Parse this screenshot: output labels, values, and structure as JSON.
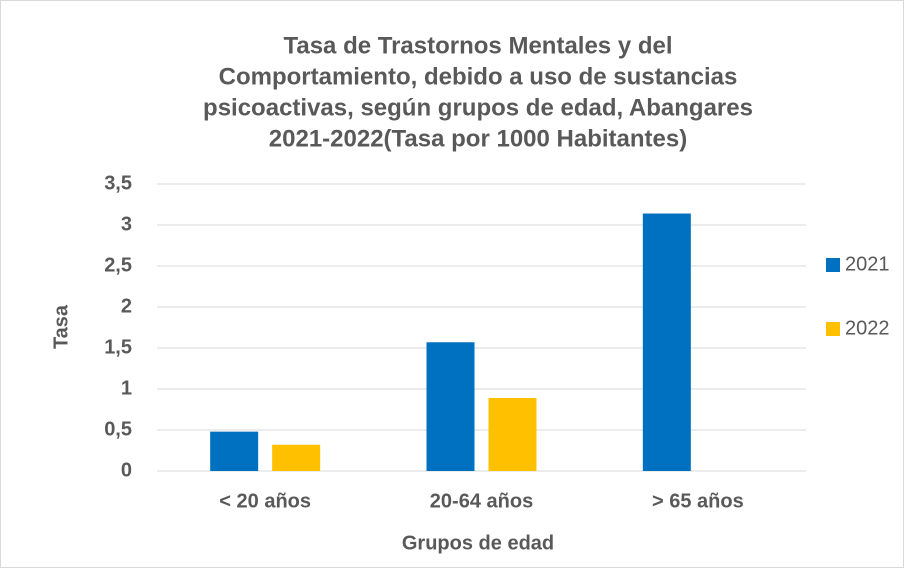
{
  "chart_data": {
    "type": "bar",
    "title": [
      "Tasa de Trastornos Mentales y del",
      "Comportamiento, debido a uso de sustancias",
      "psicoactivas, según grupos de edad, Abangares",
      "2021-2022(Tasa por 1000 Habitantes)"
    ],
    "x_label": "Grupos de edad",
    "y_label": "Tasa",
    "categories": [
      "< 20 años",
      "20-64 años",
      "> 65 años"
    ],
    "series": [
      {
        "name": "2021",
        "color": "#0070c0",
        "values": [
          0.48,
          1.57,
          3.14
        ]
      },
      {
        "name": "2022",
        "color": "#ffc000",
        "values": [
          0.32,
          0.89,
          0
        ]
      }
    ],
    "ylim": [
      0,
      3.5
    ],
    "yticks": [
      0,
      {
        "value": 0.5,
        "label": "0,5"
      },
      1,
      {
        "value": 1.5,
        "label": "1,5"
      },
      2,
      {
        "value": 2.5,
        "label": "2,5"
      },
      3,
      {
        "value": 3.5,
        "label": "3,5"
      }
    ],
    "grid": true,
    "legend": "right"
  }
}
